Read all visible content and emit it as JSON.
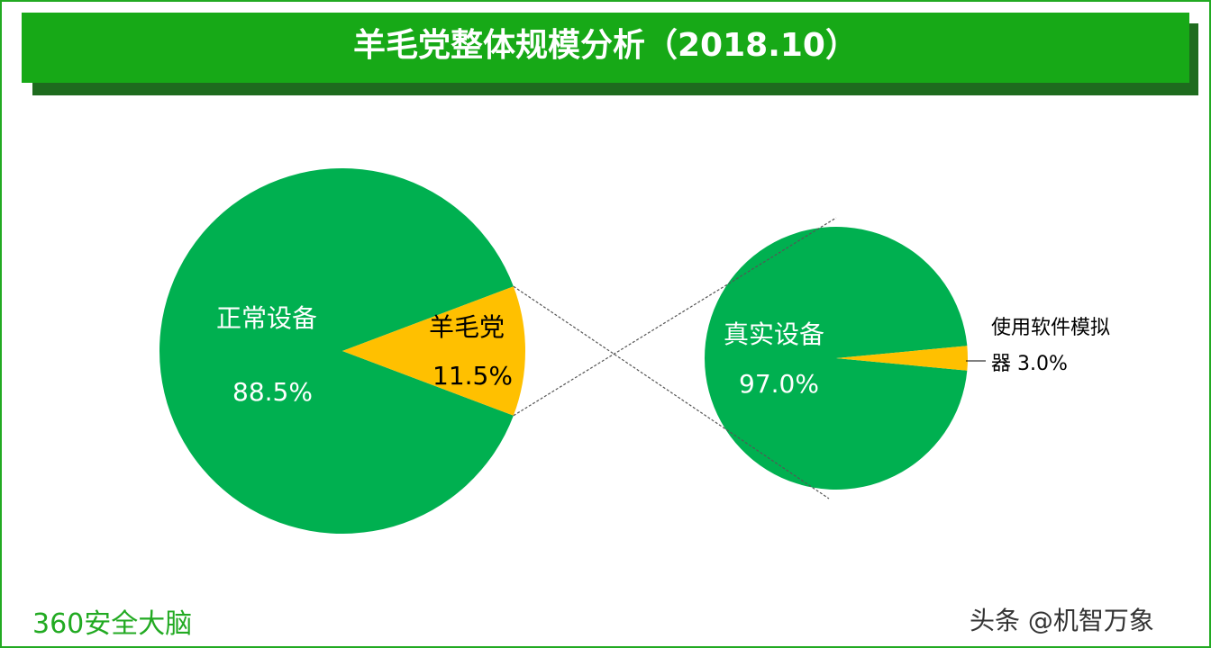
{
  "title": "羊毛党整体规模分析（2018.10）",
  "chart_data": [
    {
      "type": "pie",
      "categories": [
        "正常设备",
        "羊毛党"
      ],
      "values": [
        88.5,
        11.5
      ],
      "value_labels": [
        "88.5%",
        "11.5%"
      ],
      "colors": [
        "#00b050",
        "#ffc000"
      ]
    },
    {
      "type": "pie",
      "categories": [
        "真实设备",
        "使用软件模拟器"
      ],
      "values": [
        97.0,
        3.0
      ],
      "value_labels": [
        "97.0%",
        "3.0%"
      ],
      "colors": [
        "#00b050",
        "#ffc000"
      ]
    }
  ],
  "footer": {
    "source": "360安全大脑",
    "watermark": "头条 @机智万象"
  }
}
